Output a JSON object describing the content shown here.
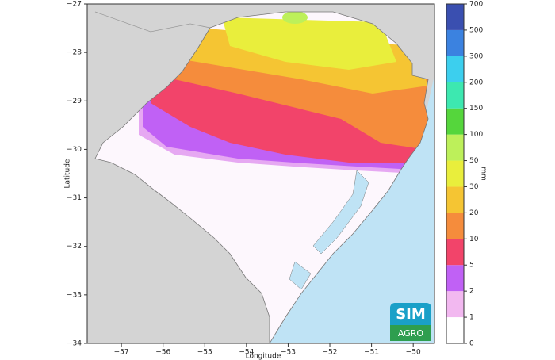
{
  "map": {
    "xlabel": "Longitude",
    "ylabel": "Latitude",
    "xlim": [
      -57.82,
      -49.49
    ],
    "ylim": [
      -34,
      -27
    ],
    "xticks": [
      {
        "value": -57,
        "label": "−57"
      },
      {
        "value": -56,
        "label": "−56"
      },
      {
        "value": -55,
        "label": "−55"
      },
      {
        "value": -54,
        "label": "−54"
      },
      {
        "value": -53,
        "label": "−53"
      },
      {
        "value": -52,
        "label": "−52"
      },
      {
        "value": -51,
        "label": "−51"
      },
      {
        "value": -50,
        "label": "−50"
      }
    ],
    "yticks": [
      {
        "value": -27,
        "label": "−27"
      },
      {
        "value": -28,
        "label": "−28"
      },
      {
        "value": -29,
        "label": "−29"
      },
      {
        "value": -30,
        "label": "−30"
      },
      {
        "value": -31,
        "label": "−31"
      },
      {
        "value": -32,
        "label": "−32"
      },
      {
        "value": -33,
        "label": "−33"
      },
      {
        "value": -34,
        "label": "−34"
      }
    ],
    "colorbar": {
      "label": "mm",
      "levels": [
        0,
        1,
        2,
        5,
        10,
        20,
        30,
        50,
        100,
        150,
        200,
        300,
        500,
        700
      ],
      "colors": [
        "#ffffff",
        "#f2b8f0",
        "#c061f5",
        "#f2446a",
        "#f58c3c",
        "#f5c533",
        "#e9ee3c",
        "#bdf05a",
        "#55d63c",
        "#3de8b0",
        "#3ccfee",
        "#3b82e0",
        "#3a4fb0"
      ]
    },
    "logo": {
      "top": "SIM",
      "bottom": "AGRO"
    }
  }
}
